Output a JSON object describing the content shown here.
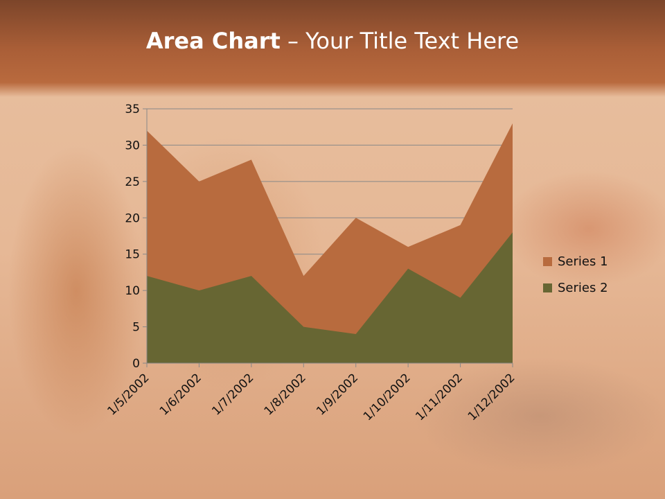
{
  "title": {
    "bold": "Area Chart",
    "rest": " – Your Title Text Here"
  },
  "chart_data": {
    "type": "area",
    "categories": [
      "1/5/2002",
      "1/6/2002",
      "1/7/2002",
      "1/8/2002",
      "1/9/2002",
      "1/10/2002",
      "1/11/2002",
      "1/12/2002"
    ],
    "series": [
      {
        "name": "Series 1",
        "values": [
          32,
          25,
          28,
          12,
          20,
          16,
          19,
          33
        ],
        "color": "#b86b3e"
      },
      {
        "name": "Series 2",
        "values": [
          12,
          10,
          12,
          5,
          4,
          13,
          9,
          18
        ],
        "color": "#676633"
      }
    ],
    "ylim": [
      0,
      35
    ],
    "yticks": [
      0,
      5,
      10,
      15,
      20,
      25,
      30,
      35
    ],
    "grid": true,
    "legend": "right"
  }
}
